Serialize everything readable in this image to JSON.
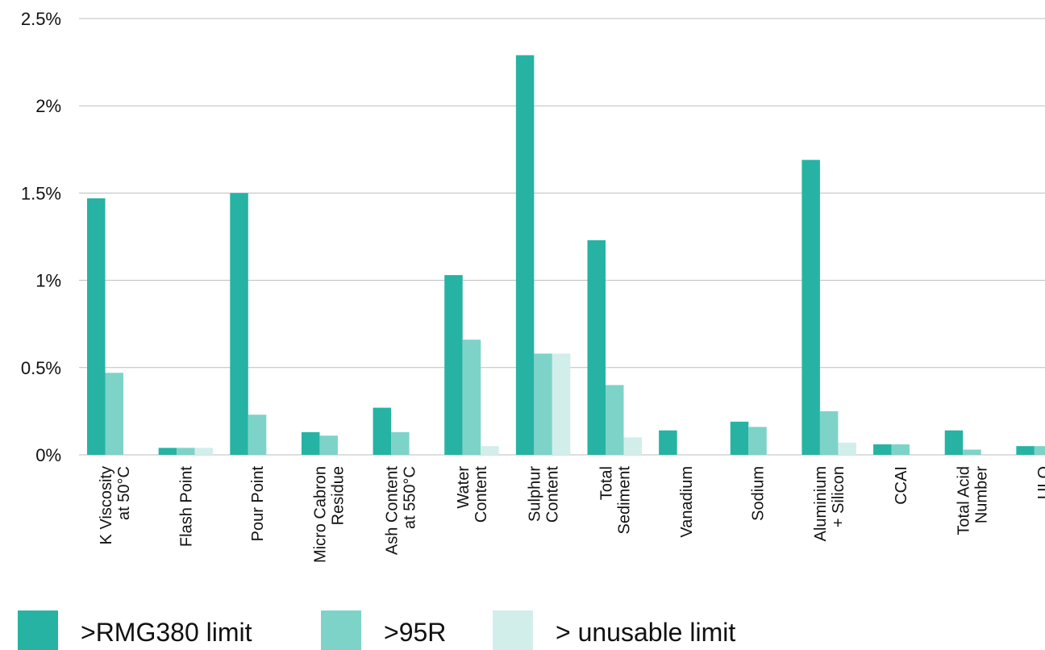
{
  "chart_data": {
    "type": "bar",
    "title": "",
    "xlabel": "",
    "ylabel": "",
    "ylim": [
      0,
      2.5
    ],
    "yticks": [
      "0%",
      "0.5%",
      "1%",
      "1.5%",
      "2%",
      "2.5%"
    ],
    "grid": true,
    "legend_position": "bottom",
    "categories": [
      [
        "K Viscosity",
        "at 50°C"
      ],
      [
        "Flash Point"
      ],
      [
        "Pour Point"
      ],
      [
        "Micro Cabron",
        "Residue"
      ],
      [
        "Ash Content",
        "at 550°C"
      ],
      [
        "Water",
        "Content"
      ],
      [
        "Sulphur",
        "Content"
      ],
      [
        "Total",
        "Sediment"
      ],
      [
        "Vanadium"
      ],
      [
        "Sodium"
      ],
      [
        "Aluminium",
        "+ Silicon"
      ],
      [
        "CCAI"
      ],
      [
        "Total Acid",
        "Number"
      ],
      [
        "ULO"
      ]
    ],
    "series": [
      {
        "name": ">RMG380 limit",
        "color": "#26b3a3",
        "values": [
          1.47,
          0.04,
          1.5,
          0.13,
          0.27,
          1.03,
          2.29,
          1.23,
          0.14,
          0.19,
          1.69,
          0.06,
          0.14,
          0.05
        ]
      },
      {
        "name": ">95R",
        "color": "#7dd3c8",
        "values": [
          0.47,
          0.04,
          0.23,
          0.11,
          0.13,
          0.66,
          0.58,
          0.4,
          0,
          0.16,
          0.25,
          0.06,
          0.03,
          0.05
        ]
      },
      {
        "name": "> unusable limit",
        "color": "#d2eeeb",
        "values": [
          0,
          0.04,
          0,
          0,
          0,
          0.05,
          0.58,
          0.1,
          0,
          0,
          0.07,
          0,
          0,
          0
        ]
      }
    ]
  }
}
